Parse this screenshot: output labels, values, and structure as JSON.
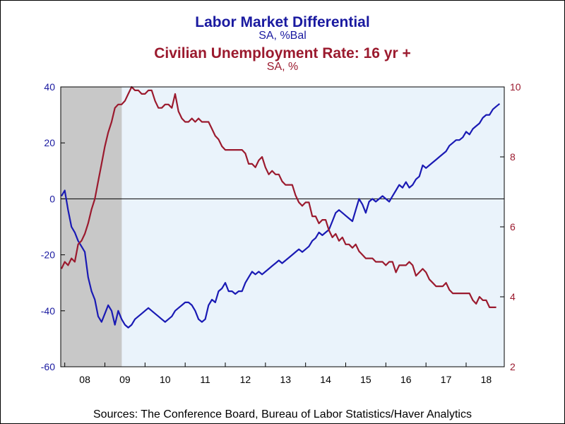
{
  "chart_data": {
    "type": "line",
    "titles": [
      {
        "text": "Labor Market Differential",
        "color": "#1a1aa0"
      },
      {
        "text": "SA, %Bal",
        "color": "#1a1aa0"
      },
      {
        "text": "Civilian Unemployment Rate: 16 yr +",
        "color": "#9b1a2e"
      },
      {
        "text": "SA, %",
        "color": "#9b1a2e"
      }
    ],
    "source": "Sources:  The Conference Board, Bureau of Labor Statistics/Haver Analytics",
    "x_range": [
      2007.9,
      2018.95
    ],
    "x_tick_labels": [
      "08",
      "09",
      "10",
      "11",
      "12",
      "13",
      "14",
      "15",
      "16",
      "17",
      "18"
    ],
    "recession": [
      2007.9,
      2009.42
    ],
    "left_axis": {
      "ylim": [
        -60,
        40
      ],
      "ticks": [
        -60,
        -40,
        -20,
        0,
        20,
        40
      ],
      "tick_labels": [
        "-60",
        "-40",
        "-20",
        "0",
        "20",
        "40"
      ],
      "color": "#1a1aa0"
    },
    "right_axis": {
      "ylim": [
        2,
        10
      ],
      "ticks": [
        2,
        4,
        6,
        8,
        10
      ],
      "tick_labels": [
        "2",
        "4",
        "6",
        "8",
        "10"
      ],
      "color": "#9b1a2e"
    },
    "zero_line": 0,
    "grid": false,
    "colors": {
      "plot_bg": "#eaf3fb",
      "recession": "#c8c8c8",
      "blue": "#1a1ab4",
      "red": "#9b1a2e"
    },
    "series": [
      {
        "name": "Labor Market Differential",
        "axis": "left",
        "color": "#1a1ab4",
        "points": [
          [
            2007.917,
            1
          ],
          [
            2008.0,
            3
          ],
          [
            2008.083,
            -4
          ],
          [
            2008.167,
            -10
          ],
          [
            2008.25,
            -12
          ],
          [
            2008.333,
            -15
          ],
          [
            2008.417,
            -17
          ],
          [
            2008.5,
            -19
          ],
          [
            2008.583,
            -28
          ],
          [
            2008.667,
            -33
          ],
          [
            2008.75,
            -36
          ],
          [
            2008.833,
            -42
          ],
          [
            2008.917,
            -44
          ],
          [
            2009.0,
            -41
          ],
          [
            2009.083,
            -38
          ],
          [
            2009.167,
            -40
          ],
          [
            2009.25,
            -45
          ],
          [
            2009.333,
            -40
          ],
          [
            2009.417,
            -43
          ],
          [
            2009.5,
            -45
          ],
          [
            2009.583,
            -46
          ],
          [
            2009.667,
            -45
          ],
          [
            2009.75,
            -43
          ],
          [
            2009.833,
            -42
          ],
          [
            2009.917,
            -41
          ],
          [
            2010.0,
            -40
          ],
          [
            2010.083,
            -39
          ],
          [
            2010.167,
            -40
          ],
          [
            2010.25,
            -41
          ],
          [
            2010.333,
            -42
          ],
          [
            2010.417,
            -43
          ],
          [
            2010.5,
            -44
          ],
          [
            2010.583,
            -43
          ],
          [
            2010.667,
            -42
          ],
          [
            2010.75,
            -40
          ],
          [
            2010.833,
            -39
          ],
          [
            2010.917,
            -38
          ],
          [
            2011.0,
            -37
          ],
          [
            2011.083,
            -37
          ],
          [
            2011.167,
            -38
          ],
          [
            2011.25,
            -40
          ],
          [
            2011.333,
            -43
          ],
          [
            2011.417,
            -44
          ],
          [
            2011.5,
            -43
          ],
          [
            2011.583,
            -38
          ],
          [
            2011.667,
            -36
          ],
          [
            2011.75,
            -37
          ],
          [
            2011.833,
            -33
          ],
          [
            2011.917,
            -32
          ],
          [
            2012.0,
            -30
          ],
          [
            2012.083,
            -33
          ],
          [
            2012.167,
            -33
          ],
          [
            2012.25,
            -34
          ],
          [
            2012.333,
            -33
          ],
          [
            2012.417,
            -33
          ],
          [
            2012.5,
            -30
          ],
          [
            2012.583,
            -28
          ],
          [
            2012.667,
            -26
          ],
          [
            2012.75,
            -27
          ],
          [
            2012.833,
            -26
          ],
          [
            2012.917,
            -27
          ],
          [
            2013.0,
            -26
          ],
          [
            2013.083,
            -25
          ],
          [
            2013.167,
            -24
          ],
          [
            2013.25,
            -23
          ],
          [
            2013.333,
            -22
          ],
          [
            2013.417,
            -23
          ],
          [
            2013.5,
            -22
          ],
          [
            2013.583,
            -21
          ],
          [
            2013.667,
            -20
          ],
          [
            2013.75,
            -19
          ],
          [
            2013.833,
            -18
          ],
          [
            2013.917,
            -19
          ],
          [
            2014.0,
            -18
          ],
          [
            2014.083,
            -17
          ],
          [
            2014.167,
            -15
          ],
          [
            2014.25,
            -14
          ],
          [
            2014.333,
            -12
          ],
          [
            2014.417,
            -13
          ],
          [
            2014.5,
            -12
          ],
          [
            2014.583,
            -11
          ],
          [
            2014.667,
            -8
          ],
          [
            2014.75,
            -5
          ],
          [
            2014.833,
            -4
          ],
          [
            2014.917,
            -5
          ],
          [
            2015.0,
            -6
          ],
          [
            2015.083,
            -7
          ],
          [
            2015.167,
            -8
          ],
          [
            2015.25,
            -4
          ],
          [
            2015.333,
            0
          ],
          [
            2015.417,
            -2
          ],
          [
            2015.5,
            -5
          ],
          [
            2015.583,
            -1
          ],
          [
            2015.667,
            0
          ],
          [
            2015.75,
            -1
          ],
          [
            2015.833,
            0
          ],
          [
            2015.917,
            1
          ],
          [
            2016.0,
            0
          ],
          [
            2016.083,
            -1
          ],
          [
            2016.167,
            1
          ],
          [
            2016.25,
            3
          ],
          [
            2016.333,
            5
          ],
          [
            2016.417,
            4
          ],
          [
            2016.5,
            6
          ],
          [
            2016.583,
            4
          ],
          [
            2016.667,
            5
          ],
          [
            2016.75,
            7
          ],
          [
            2016.833,
            8
          ],
          [
            2016.917,
            12
          ],
          [
            2017.0,
            11
          ],
          [
            2017.083,
            12
          ],
          [
            2017.167,
            13
          ],
          [
            2017.25,
            14
          ],
          [
            2017.333,
            15
          ],
          [
            2017.417,
            16
          ],
          [
            2017.5,
            17
          ],
          [
            2017.583,
            19
          ],
          [
            2017.667,
            20
          ],
          [
            2017.75,
            21
          ],
          [
            2017.833,
            21
          ],
          [
            2017.917,
            22
          ],
          [
            2018.0,
            24
          ],
          [
            2018.083,
            23
          ],
          [
            2018.167,
            25
          ],
          [
            2018.25,
            26
          ],
          [
            2018.333,
            27
          ],
          [
            2018.417,
            29
          ],
          [
            2018.5,
            30
          ],
          [
            2018.583,
            30
          ],
          [
            2018.667,
            32
          ],
          [
            2018.75,
            33
          ],
          [
            2018.833,
            34
          ]
        ]
      },
      {
        "name": "Civilian Unemployment Rate: 16 yr +",
        "axis": "right",
        "color": "#9b1a2e",
        "points": [
          [
            2007.917,
            4.8
          ],
          [
            2008.0,
            5.0
          ],
          [
            2008.083,
            4.9
          ],
          [
            2008.167,
            5.1
          ],
          [
            2008.25,
            5.0
          ],
          [
            2008.333,
            5.5
          ],
          [
            2008.417,
            5.6
          ],
          [
            2008.5,
            5.8
          ],
          [
            2008.583,
            6.1
          ],
          [
            2008.667,
            6.5
          ],
          [
            2008.75,
            6.8
          ],
          [
            2008.833,
            7.3
          ],
          [
            2008.917,
            7.8
          ],
          [
            2009.0,
            8.3
          ],
          [
            2009.083,
            8.7
          ],
          [
            2009.167,
            9.0
          ],
          [
            2009.25,
            9.4
          ],
          [
            2009.333,
            9.5
          ],
          [
            2009.417,
            9.5
          ],
          [
            2009.5,
            9.6
          ],
          [
            2009.583,
            9.8
          ],
          [
            2009.667,
            10.0
          ],
          [
            2009.75,
            9.9
          ],
          [
            2009.833,
            9.9
          ],
          [
            2009.917,
            9.8
          ],
          [
            2010.0,
            9.8
          ],
          [
            2010.083,
            9.9
          ],
          [
            2010.167,
            9.9
          ],
          [
            2010.25,
            9.6
          ],
          [
            2010.333,
            9.4
          ],
          [
            2010.417,
            9.4
          ],
          [
            2010.5,
            9.5
          ],
          [
            2010.583,
            9.5
          ],
          [
            2010.667,
            9.4
          ],
          [
            2010.75,
            9.8
          ],
          [
            2010.833,
            9.3
          ],
          [
            2010.917,
            9.1
          ],
          [
            2011.0,
            9.0
          ],
          [
            2011.083,
            9.0
          ],
          [
            2011.167,
            9.1
          ],
          [
            2011.25,
            9.0
          ],
          [
            2011.333,
            9.1
          ],
          [
            2011.417,
            9.0
          ],
          [
            2011.5,
            9.0
          ],
          [
            2011.583,
            9.0
          ],
          [
            2011.667,
            8.8
          ],
          [
            2011.75,
            8.6
          ],
          [
            2011.833,
            8.5
          ],
          [
            2011.917,
            8.3
          ],
          [
            2012.0,
            8.2
          ],
          [
            2012.083,
            8.2
          ],
          [
            2012.167,
            8.2
          ],
          [
            2012.25,
            8.2
          ],
          [
            2012.333,
            8.2
          ],
          [
            2012.417,
            8.2
          ],
          [
            2012.5,
            8.1
          ],
          [
            2012.583,
            7.8
          ],
          [
            2012.667,
            7.8
          ],
          [
            2012.75,
            7.7
          ],
          [
            2012.833,
            7.9
          ],
          [
            2012.917,
            8.0
          ],
          [
            2013.0,
            7.7
          ],
          [
            2013.083,
            7.5
          ],
          [
            2013.167,
            7.6
          ],
          [
            2013.25,
            7.5
          ],
          [
            2013.333,
            7.5
          ],
          [
            2013.417,
            7.3
          ],
          [
            2013.5,
            7.2
          ],
          [
            2013.583,
            7.2
          ],
          [
            2013.667,
            7.2
          ],
          [
            2013.75,
            6.9
          ],
          [
            2013.833,
            6.7
          ],
          [
            2013.917,
            6.6
          ],
          [
            2014.0,
            6.7
          ],
          [
            2014.083,
            6.7
          ],
          [
            2014.167,
            6.3
          ],
          [
            2014.25,
            6.3
          ],
          [
            2014.333,
            6.1
          ],
          [
            2014.417,
            6.2
          ],
          [
            2014.5,
            6.2
          ],
          [
            2014.583,
            5.9
          ],
          [
            2014.667,
            5.7
          ],
          [
            2014.75,
            5.8
          ],
          [
            2014.833,
            5.6
          ],
          [
            2014.917,
            5.7
          ],
          [
            2015.0,
            5.5
          ],
          [
            2015.083,
            5.5
          ],
          [
            2015.167,
            5.4
          ],
          [
            2015.25,
            5.5
          ],
          [
            2015.333,
            5.3
          ],
          [
            2015.417,
            5.2
          ],
          [
            2015.5,
            5.1
          ],
          [
            2015.583,
            5.1
          ],
          [
            2015.667,
            5.1
          ],
          [
            2015.75,
            5.0
          ],
          [
            2015.833,
            5.0
          ],
          [
            2015.917,
            5.0
          ],
          [
            2016.0,
            4.9
          ],
          [
            2016.083,
            5.0
          ],
          [
            2016.167,
            5.0
          ],
          [
            2016.25,
            4.7
          ],
          [
            2016.333,
            4.9
          ],
          [
            2016.417,
            4.9
          ],
          [
            2016.5,
            4.9
          ],
          [
            2016.583,
            5.0
          ],
          [
            2016.667,
            4.9
          ],
          [
            2016.75,
            4.6
          ],
          [
            2016.833,
            4.7
          ],
          [
            2016.917,
            4.8
          ],
          [
            2017.0,
            4.7
          ],
          [
            2017.083,
            4.5
          ],
          [
            2017.167,
            4.4
          ],
          [
            2017.25,
            4.3
          ],
          [
            2017.333,
            4.3
          ],
          [
            2017.417,
            4.3
          ],
          [
            2017.5,
            4.4
          ],
          [
            2017.583,
            4.2
          ],
          [
            2017.667,
            4.1
          ],
          [
            2017.75,
            4.1
          ],
          [
            2017.833,
            4.1
          ],
          [
            2017.917,
            4.1
          ],
          [
            2018.0,
            4.1
          ],
          [
            2018.083,
            4.1
          ],
          [
            2018.167,
            3.9
          ],
          [
            2018.25,
            3.8
          ],
          [
            2018.333,
            4.0
          ],
          [
            2018.417,
            3.9
          ],
          [
            2018.5,
            3.9
          ],
          [
            2018.583,
            3.7
          ],
          [
            2018.667,
            3.7
          ],
          [
            2018.75,
            3.7
          ]
        ]
      }
    ]
  }
}
